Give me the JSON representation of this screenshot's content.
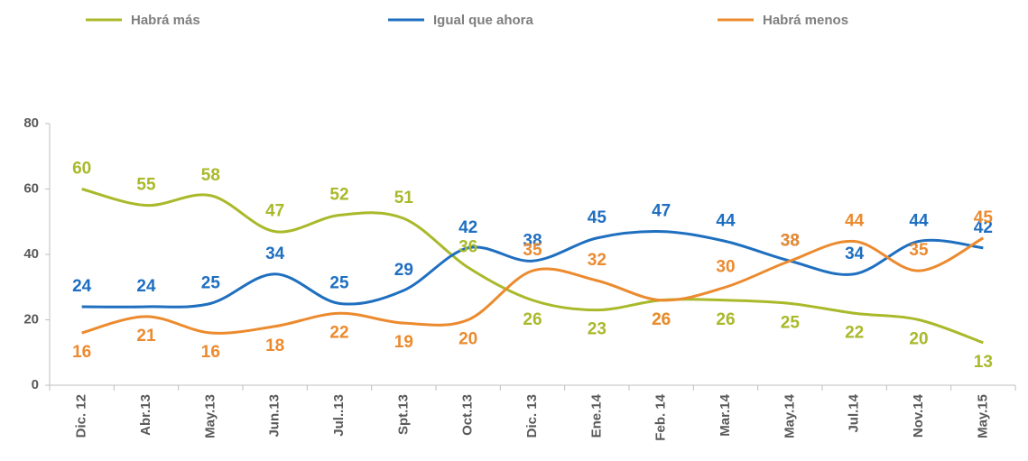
{
  "chart_data": {
    "type": "line",
    "categories": [
      "Dic. 12",
      "Abr.13",
      "May.13",
      "Jun.13",
      "Jul..13",
      "Spt.13",
      "Oct.13",
      "Dic. 13",
      "Ene.14",
      "Feb. 14",
      "Mar.14",
      "May.14",
      "Jul.14",
      "Nov.14",
      "May.15"
    ],
    "series": [
      {
        "name": "Habrá más",
        "color": "#a9b92a",
        "values": [
          60,
          55,
          58,
          47,
          52,
          51,
          36,
          26,
          23,
          26,
          26,
          25,
          22,
          20,
          13
        ]
      },
      {
        "name": "Igual que ahora",
        "color": "#1f6fc0",
        "values": [
          24,
          24,
          25,
          34,
          25,
          29,
          42,
          38,
          45,
          47,
          44,
          38,
          34,
          44,
          42
        ]
      },
      {
        "name": "Habrá menos",
        "color": "#ec8a2e",
        "values": [
          16,
          21,
          16,
          18,
          22,
          19,
          20,
          35,
          32,
          26,
          30,
          38,
          44,
          35,
          45
        ]
      }
    ],
    "ylim": [
      0,
      80
    ],
    "yticks": [
      0,
      20,
      40,
      60,
      80
    ],
    "legend": "top"
  }
}
